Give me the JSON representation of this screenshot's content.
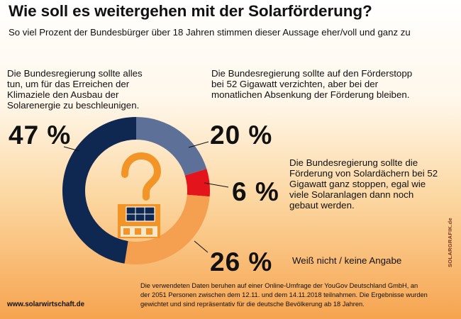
{
  "title": "Wie soll es weitergehen mit der Solarförderung?",
  "subtitle": "So viel Prozent der Bundesbürger über 18 Jahren stimmen dieser Aussage eher/voll und ganz zu",
  "colors": {
    "navy": "#0f2852",
    "slate": "#5d7198",
    "red": "#e4141c",
    "orange": "#f4a050",
    "icon_orange": "#f29526"
  },
  "chart_data": {
    "type": "pie",
    "title": "Wie soll es weitergehen mit der Solarförderung?",
    "subtitle": "So viel Prozent der Bundesbürger über 18 Jahren stimmen dieser Aussage eher/voll und ganz zu",
    "style": "donut",
    "slices": [
      {
        "label": "Die Bundesregierung sollte alles tun, um für das Erreichen der Klimaziele den Ausbau der Solarenergie zu beschleunigen.",
        "value": 47,
        "value_label": "47 %",
        "color": "#0f2852"
      },
      {
        "label": "Die Bundesregierung sollte auf den Förderstopp bei 52 Gigawatt verzichten, aber bei der monatlichen Absenkung der Förderung bleiben.",
        "value": 20,
        "value_label": "20 %",
        "color": "#5d7198"
      },
      {
        "label": "Die Bundesregierung sollte die Förderung von Solardächern bei 52 Gigawatt ganz stoppen, egal wie viele Solaranlagen dann noch gebaut werden.",
        "value": 6,
        "value_label": "6 %",
        "color": "#e4141c"
      },
      {
        "label": "Weiß nicht / keine Angabe",
        "value": 26,
        "value_label": "26 %",
        "color": "#f4a050"
      }
    ]
  },
  "icons": {
    "center": "question-mark-house-with-solar-panels-icon"
  },
  "footnote": "Die verwendeten Daten beruhen auf einer Online-Umfrage der YouGov Deutschland GmbH, an der 2051 Personen zwischen dem 12.11. und dem 14.11.2018 teilnahmen. Die Ergebnisse wurden gewichtet und sind repräsentativ für die deutsche Bevölkerung ab 18 Jahren.",
  "website": "www.solarwirtschaft.de",
  "side_credit": "SOLARGRAFIK.de"
}
